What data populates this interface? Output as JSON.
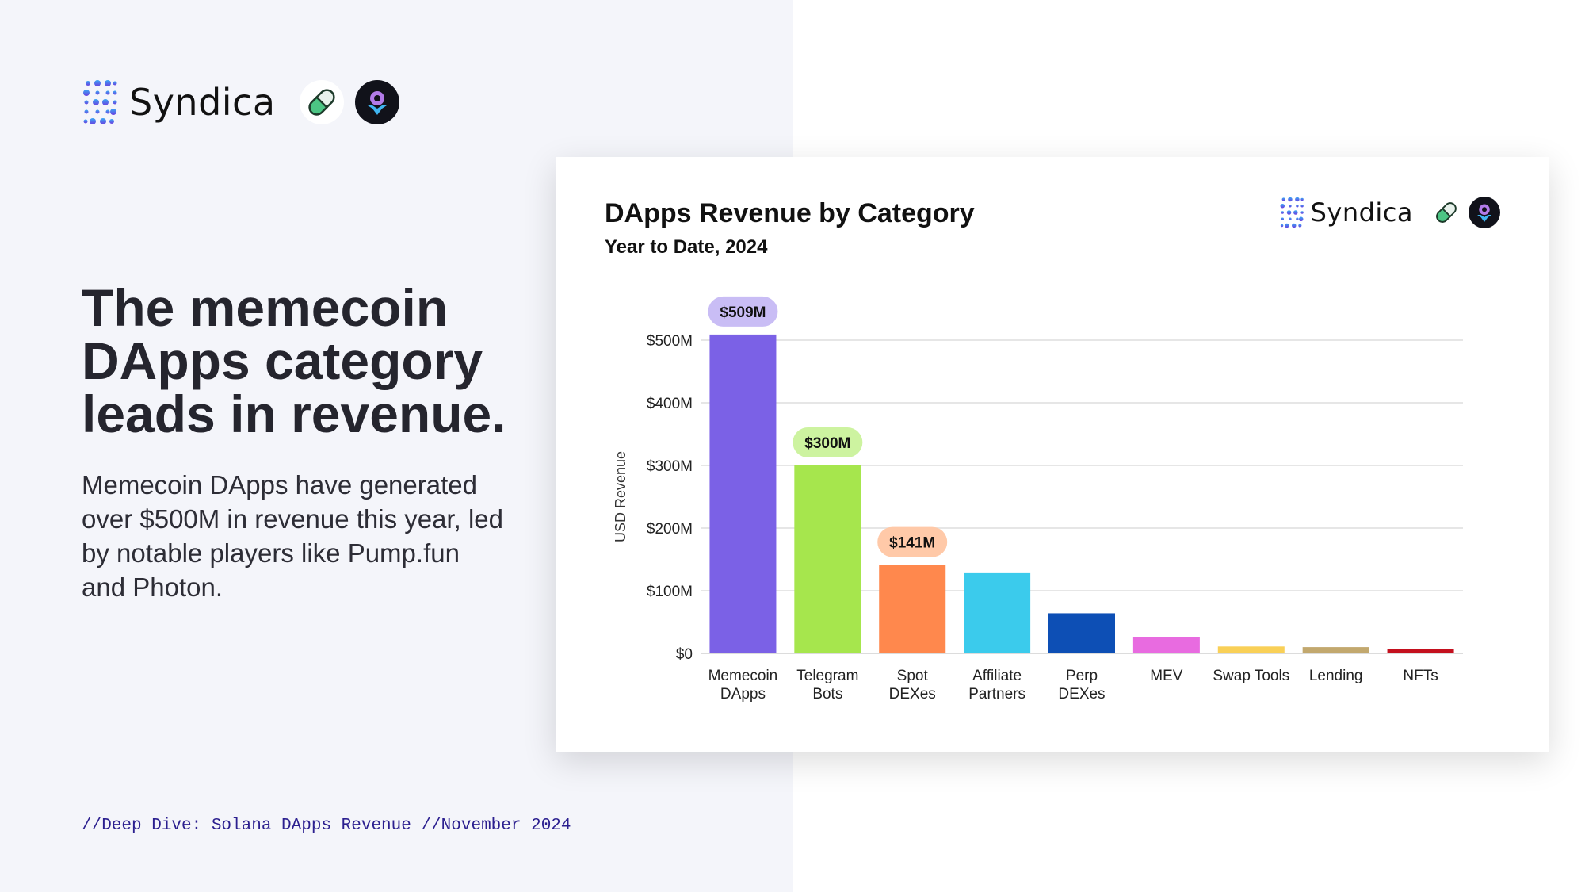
{
  "brand": {
    "name": "Syndica",
    "icons": [
      "syndica-logo-icon",
      "pill-icon",
      "rocket-icon"
    ]
  },
  "headline": "The memecoin DApps category leads in revenue.",
  "body": "Memecoin DApps have generated over $500M in revenue this year, led by notable players like Pump.fun and Photon.",
  "footer": "//Deep Dive: Solana DApps Revenue //November 2024",
  "chart_data": {
    "type": "bar",
    "title": "DApps Revenue by Category",
    "subtitle": "Year to Date, 2024",
    "xlabel": "",
    "ylabel": "USD Revenue",
    "ylim": [
      0,
      500
    ],
    "yticks": [
      "$0",
      "$100M",
      "$200M",
      "$300M",
      "$400M",
      "$500M"
    ],
    "ytick_values": [
      0,
      100,
      200,
      300,
      400,
      500
    ],
    "grid": true,
    "categories": [
      [
        "Memecoin",
        "DApps"
      ],
      [
        "Telegram",
        "Bots"
      ],
      [
        "Spot",
        "DEXes"
      ],
      [
        "Affiliate",
        "Partners"
      ],
      [
        "Perp",
        "DEXes"
      ],
      [
        "MEV"
      ],
      [
        "Swap Tools"
      ],
      [
        "Lending"
      ],
      [
        "NFTs"
      ]
    ],
    "values": [
      509,
      300,
      141,
      128,
      64,
      26,
      11,
      10,
      7
    ],
    "unit": "USD millions",
    "colors": [
      "#7B61E6",
      "#A6E64D",
      "#FF884D",
      "#3BCBEC",
      "#0D4FB5",
      "#E86BE0",
      "#F9D057",
      "#C2A86E",
      "#C4101E"
    ],
    "data_labels": [
      {
        "index": 0,
        "text": "$509M",
        "bg": "#C9BDF5"
      },
      {
        "index": 1,
        "text": "$300M",
        "bg": "#CDF3A0"
      },
      {
        "index": 2,
        "text": "$141M",
        "bg": "#FFC9A8"
      }
    ]
  }
}
